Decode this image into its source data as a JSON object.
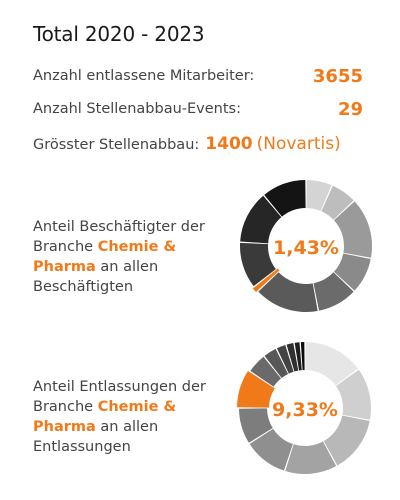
{
  "title": "Total 2020 - 2023",
  "stats": [
    {
      "label": "Anzahl entlassene Mitarbeiter:",
      "value": "3655"
    },
    {
      "label": "Anzahl Stellenabbau-Events:",
      "value": "29"
    },
    {
      "label": "Grösster Stellenabbau:",
      "value": "1400",
      "note": "(Novartis)"
    }
  ],
  "colors": {
    "accent": "#f07a1a",
    "text": "#444444"
  },
  "charts": [
    {
      "desc_before": "Anteil Beschäftigter der Branche ",
      "desc_highlight": "Chemie & Pharma",
      "desc_after": " an allen Beschäftigten",
      "center_label": "1,43%"
    },
    {
      "desc_before": "Anteil Entlassungen der Branche ",
      "desc_highlight": "Chemie & Pharma",
      "desc_after": " an allen Entlassungen",
      "center_label": "9,33%"
    }
  ],
  "chart_data": [
    {
      "type": "pie",
      "variant": "donut",
      "highlight_value_percent": 1.43,
      "slices": [
        {
          "value": 6.5,
          "color": "#d4d4d4"
        },
        {
          "value": 6.5,
          "color": "#bdbdbd"
        },
        {
          "value": 15,
          "color": "#9a9a9a"
        },
        {
          "value": 9,
          "color": "#8a8a8a"
        },
        {
          "value": 10,
          "color": "#6b6b6b"
        },
        {
          "value": 16,
          "color": "#5a5a5a"
        },
        {
          "value": 1.43,
          "color": "#f07a1a"
        },
        {
          "value": 11.5,
          "color": "#3a3a3a"
        },
        {
          "value": 13,
          "color": "#262626"
        },
        {
          "value": 11.07,
          "color": "#141414"
        }
      ]
    },
    {
      "type": "pie",
      "variant": "donut",
      "highlight_value_percent": 9.33,
      "slices": [
        {
          "value": 15,
          "color": "#e6e6e6"
        },
        {
          "value": 13,
          "color": "#cfcfcf"
        },
        {
          "value": 14,
          "color": "#b8b8b8"
        },
        {
          "value": 13,
          "color": "#a3a3a3"
        },
        {
          "value": 11,
          "color": "#8f8f8f"
        },
        {
          "value": 9,
          "color": "#7d7d7d"
        },
        {
          "value": 9.33,
          "color": "#f07a1a"
        },
        {
          "value": 5,
          "color": "#6a6a6a"
        },
        {
          "value": 3.5,
          "color": "#575757"
        },
        {
          "value": 2.5,
          "color": "#444444"
        },
        {
          "value": 2,
          "color": "#303030"
        },
        {
          "value": 1.5,
          "color": "#1e1e1e"
        },
        {
          "value": 1.17,
          "color": "#0a0a0a"
        }
      ]
    }
  ]
}
